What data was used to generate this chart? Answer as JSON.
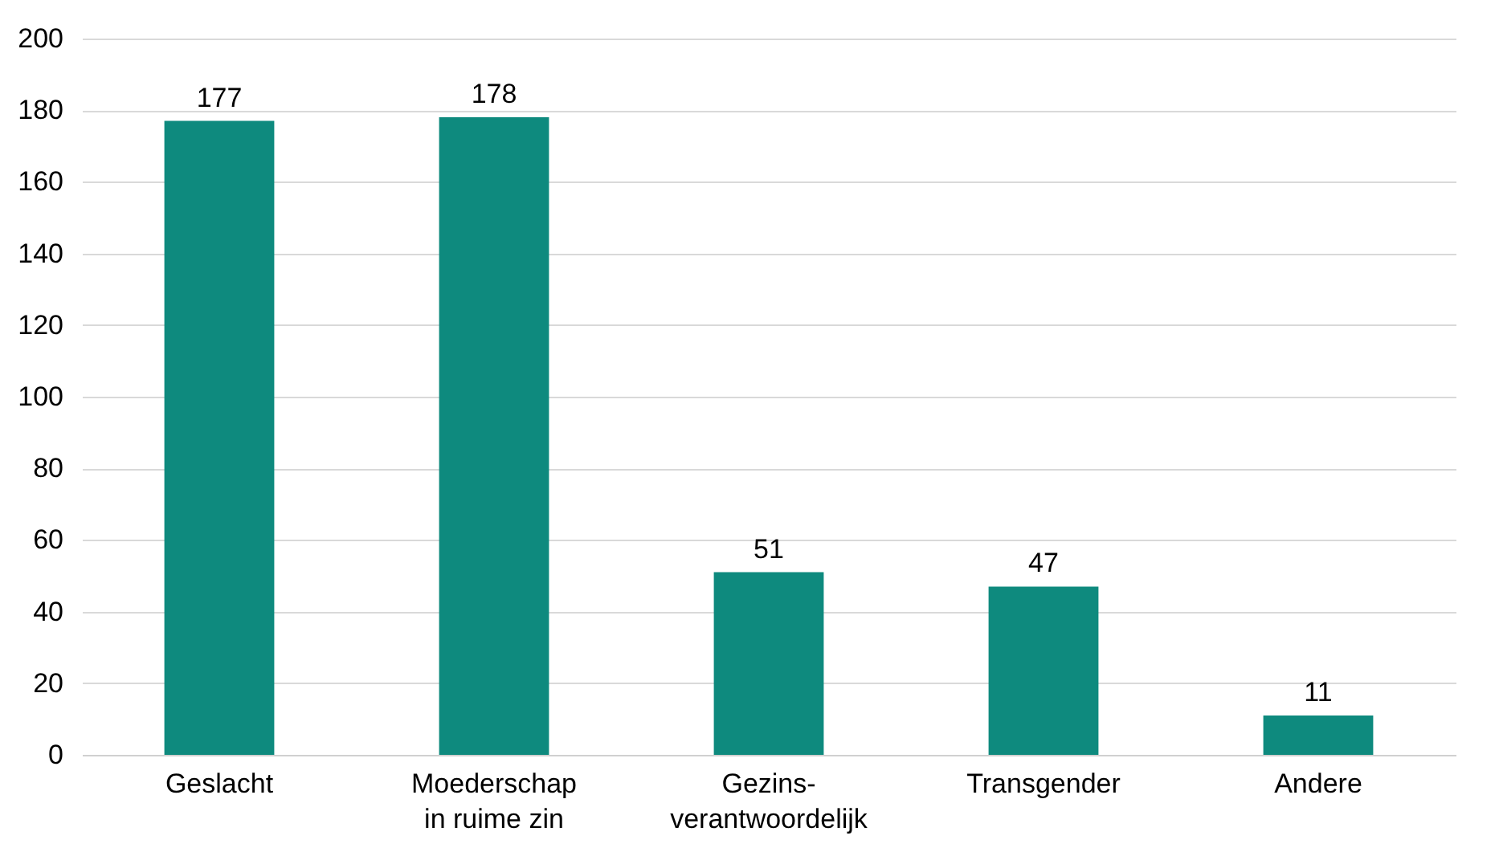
{
  "chart_data": {
    "type": "bar",
    "categories": [
      "Geslacht",
      "Moederschap\nin ruime zin",
      "Gezins-\nverantwoordelijk",
      "Transgender",
      "Andere"
    ],
    "values": [
      177,
      178,
      51,
      47,
      11
    ],
    "color": "#0e8a7e",
    "ylim": [
      0,
      200
    ],
    "yticks": [
      0,
      20,
      40,
      60,
      80,
      100,
      120,
      140,
      160,
      180,
      200
    ],
    "grid": "y",
    "data_labels": true
  }
}
